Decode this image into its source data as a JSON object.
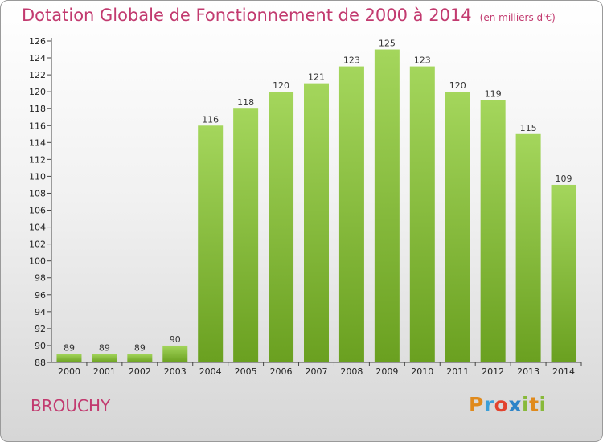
{
  "header": {
    "title": "Dotation Globale de Fonctionnement de 2000 à 2014",
    "unit": "(en milliers d'€)"
  },
  "commune": "BROUCHY",
  "logo_text": "Proxiti",
  "colors": {
    "title": "#c23a6f",
    "bar_light": "#a4d65c",
    "bar_dark": "#6aa020",
    "logo_orange": "#e08a1c",
    "logo_blue": "#3b9fd8",
    "logo_red": "#e2432e",
    "logo_green": "#88b93a"
  },
  "chart_data": {
    "type": "bar",
    "title": "Dotation Globale de Fonctionnement de 2000 à 2014",
    "subtitle": "(en milliers d'€)",
    "xlabel": "",
    "ylabel": "",
    "categories": [
      "2000",
      "2001",
      "2002",
      "2003",
      "2004",
      "2005",
      "2006",
      "2007",
      "2008",
      "2009",
      "2010",
      "2011",
      "2012",
      "2013",
      "2014"
    ],
    "values": [
      89,
      89,
      89,
      90,
      116,
      118,
      120,
      121,
      123,
      125,
      123,
      120,
      119,
      115,
      109
    ],
    "ylim": [
      88,
      126
    ],
    "yticks": [
      88,
      90,
      92,
      94,
      96,
      98,
      100,
      102,
      104,
      106,
      108,
      110,
      112,
      114,
      116,
      118,
      120,
      122,
      124,
      126
    ],
    "grid": false,
    "legend": "none"
  }
}
